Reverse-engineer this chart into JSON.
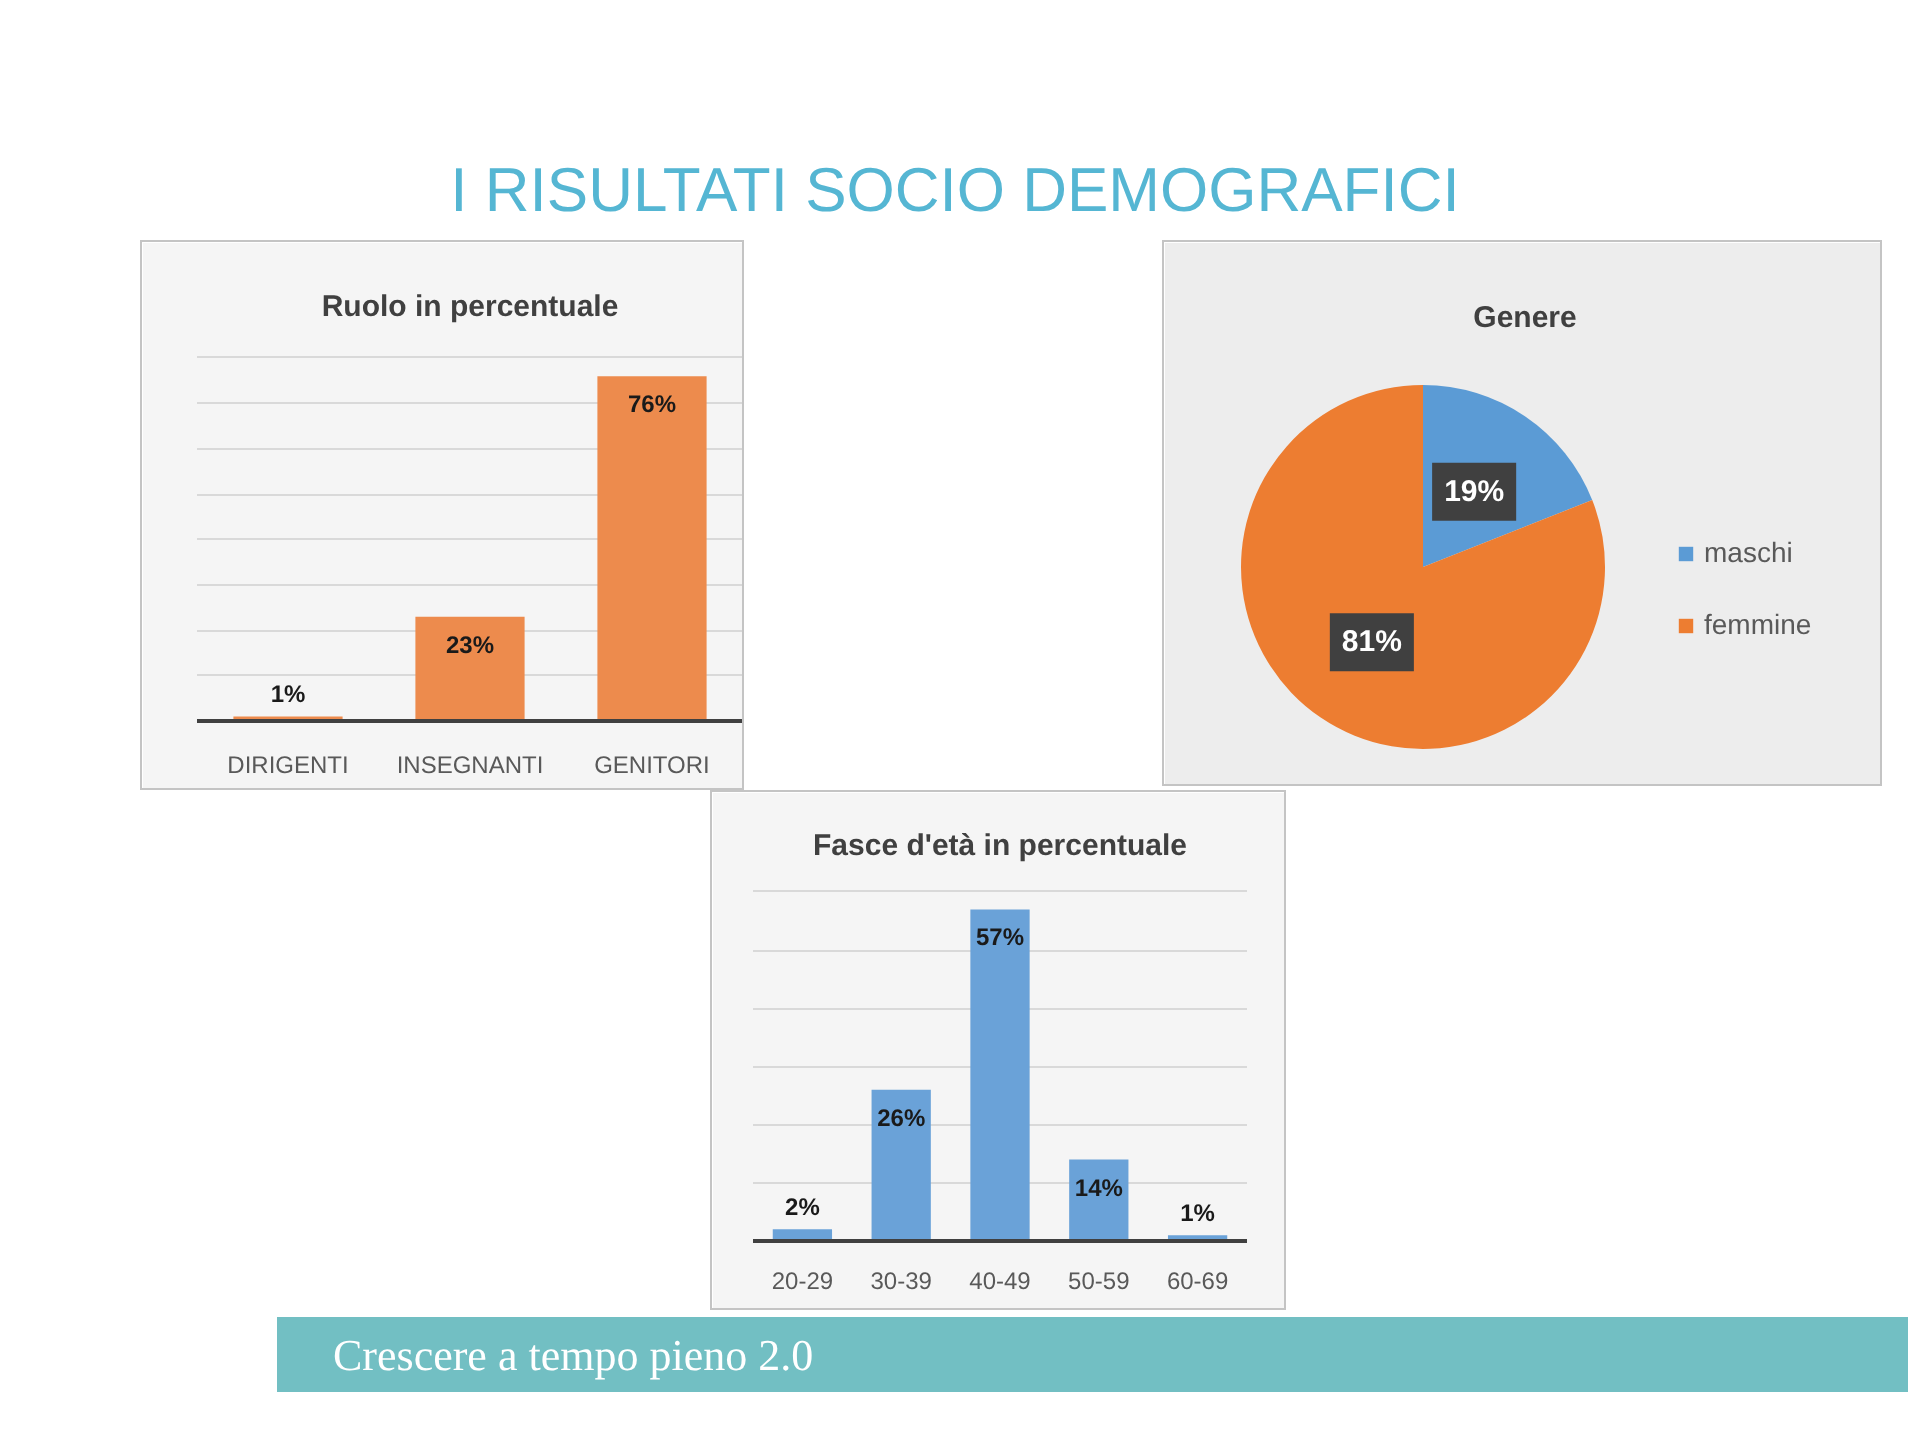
{
  "chart_data": [
    {
      "type": "other",
      "title": "I RISULTATI SOCIO DEMOGRAFICI"
    },
    {
      "type": "bar",
      "title": "Ruolo in percentuale",
      "categories": [
        "DIRIGENTI",
        "INSEGNANTI",
        "GENITORI"
      ],
      "values": [
        1,
        23,
        76
      ],
      "value_labels": [
        "1%",
        "23%",
        "76%"
      ],
      "color": "#ed8b4d",
      "ylim": [
        0,
        80
      ],
      "yticks": [
        {
          "value": 0,
          "label": null
        },
        {
          "value": 10,
          "label": null
        },
        {
          "value": 20,
          "label": null
        },
        {
          "value": 30,
          "label": null
        },
        {
          "value": 40,
          "label": null
        },
        {
          "value": 50,
          "label": null
        },
        {
          "value": 60,
          "label": null
        },
        {
          "value": 70,
          "label": null
        },
        {
          "value": 80,
          "label": null
        }
      ],
      "tick_labels": "x",
      "grid": "y"
    },
    {
      "type": "pie",
      "title": "Genere",
      "categories": [
        "maschi",
        "femmine"
      ],
      "values": [
        19,
        81
      ],
      "value_labels": [
        "19%",
        "81%"
      ],
      "colors": [
        "#5b9bd5",
        "#ed7d31"
      ],
      "legend": "right"
    },
    {
      "type": "bar",
      "title": "Fasce d'età in percentuale",
      "categories": [
        "20-29",
        "30-39",
        "40-49",
        "50-59",
        "60-69"
      ],
      "values": [
        2,
        26,
        57,
        14,
        1
      ],
      "value_labels": [
        "2%",
        "26%",
        "57%",
        "14%",
        "1%"
      ],
      "color": "#6aa2d8",
      "ylim": [
        0,
        60
      ],
      "yticks": [
        {
          "value": 0,
          "label": null
        },
        {
          "value": 10,
          "label": null
        },
        {
          "value": 20,
          "label": null
        },
        {
          "value": 30,
          "label": null
        },
        {
          "value": 40,
          "label": null
        },
        {
          "value": 50,
          "label": null
        },
        {
          "value": 60,
          "label": null
        }
      ],
      "tick_labels": "x",
      "grid": "y"
    },
    {
      "type": "other",
      "annotations": [
        "Crescere a tempo pieno 2.0"
      ]
    }
  ]
}
